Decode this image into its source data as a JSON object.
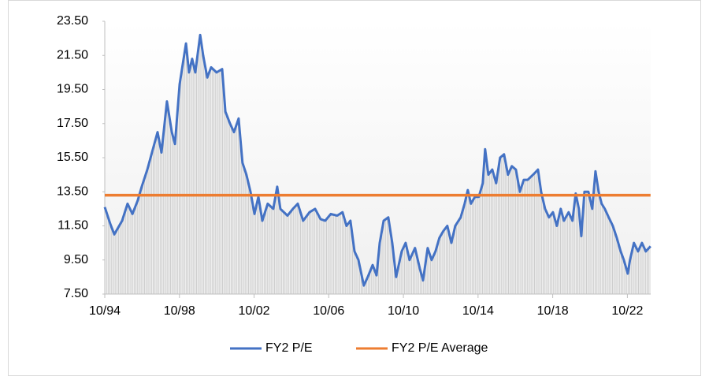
{
  "chart_data": {
    "type": "line",
    "x": [
      1994.75,
      1995.05,
      1995.26,
      1995.68,
      1995.97,
      1996.23,
      1996.52,
      1996.73,
      1997.03,
      1997.28,
      1997.58,
      1997.79,
      1998.08,
      1998.34,
      1998.51,
      1998.76,
      1999.1,
      1999.26,
      1999.43,
      1999.6,
      1999.86,
      2000.02,
      2000.24,
      2000.45,
      2000.74,
      2001.04,
      2001.21,
      2001.46,
      2001.67,
      2001.92,
      2002.13,
      2002.34,
      2002.56,
      2002.77,
      2002.98,
      2003.19,
      2003.48,
      2003.78,
      2003.99,
      2004.16,
      2004.54,
      2004.83,
      2005.09,
      2005.38,
      2005.72,
      2006.02,
      2006.31,
      2006.56,
      2006.86,
      2007.2,
      2007.49,
      2007.7,
      2007.91,
      2008.13,
      2008.34,
      2008.63,
      2008.84,
      2009.1,
      2009.31,
      2009.48,
      2009.69,
      2009.94,
      2010.15,
      2010.36,
      2010.66,
      2010.87,
      2011.08,
      2011.37,
      2011.63,
      2011.8,
      2012.05,
      2012.26,
      2012.47,
      2012.68,
      2012.89,
      2013.1,
      2013.32,
      2013.53,
      2013.82,
      2014.03,
      2014.2,
      2014.37,
      2014.58,
      2014.79,
      2015.0,
      2015.13,
      2015.3,
      2015.51,
      2015.72,
      2015.93,
      2016.14,
      2016.35,
      2016.56,
      2016.78,
      2016.99,
      2017.2,
      2017.41,
      2017.7,
      2017.96,
      2018.13,
      2018.34,
      2018.55,
      2018.76,
      2018.97,
      2019.18,
      2019.35,
      2019.6,
      2019.81,
      2019.98,
      2020.15,
      2020.28,
      2020.45,
      2020.66,
      2020.87,
      2021.04,
      2021.21,
      2021.37,
      2021.54,
      2021.75,
      2021.97,
      2022.18,
      2022.39,
      2022.56,
      2022.77,
      2022.89,
      2023.1,
      2023.32,
      2023.53,
      2023.74,
      2023.99
    ],
    "series": [
      {
        "name": "FY2 P/E",
        "color": "#4472c4",
        "fill": "#c8c8c8",
        "values": [
          12.6,
          11.6,
          11.0,
          11.8,
          12.8,
          12.2,
          13.0,
          13.8,
          14.8,
          15.8,
          17.0,
          15.8,
          18.8,
          17.0,
          16.3,
          19.8,
          22.2,
          20.5,
          21.3,
          20.5,
          22.7,
          21.5,
          20.2,
          20.8,
          20.5,
          20.7,
          18.2,
          17.5,
          17.0,
          17.8,
          15.2,
          14.5,
          13.5,
          12.2,
          13.2,
          11.8,
          12.8,
          12.5,
          13.8,
          12.5,
          12.1,
          12.5,
          12.8,
          11.8,
          12.3,
          12.5,
          11.9,
          11.8,
          12.2,
          12.1,
          12.3,
          11.5,
          11.8,
          10.0,
          9.5,
          8.0,
          8.5,
          9.2,
          8.6,
          10.5,
          11.8,
          12.0,
          10.5,
          8.5,
          10.0,
          10.5,
          9.5,
          10.2,
          9.0,
          8.3,
          10.2,
          9.5,
          10.0,
          10.8,
          11.2,
          11.5,
          10.5,
          11.5,
          12.0,
          12.8,
          13.6,
          12.8,
          13.2,
          13.2,
          14.0,
          16.0,
          14.5,
          14.8,
          14.0,
          15.5,
          15.7,
          14.5,
          15.0,
          14.8,
          13.5,
          14.2,
          14.2,
          14.5,
          14.8,
          13.5,
          12.5,
          12.0,
          12.3,
          11.5,
          12.5,
          11.8,
          12.3,
          11.8,
          13.4,
          12.5,
          10.9,
          13.5,
          13.5,
          12.5,
          14.7,
          13.5,
          12.8,
          12.5,
          12.0,
          11.5,
          10.8,
          10.0,
          9.5,
          8.7,
          9.5,
          10.5,
          10.0,
          10.5,
          10.0,
          10.3
        ]
      },
      {
        "name": "FY2 P/E Average",
        "color": "#ed7d31",
        "x": [
          1994.75,
          2023.99
        ],
        "values": [
          13.3,
          13.3
        ]
      }
    ],
    "xlim": [
      1994.75,
      2024.0
    ],
    "xticks": [
      {
        "value": 1994.75,
        "label": "10/94"
      },
      {
        "value": 1998.75,
        "label": "10/98"
      },
      {
        "value": 2002.75,
        "label": "10/02"
      },
      {
        "value": 2006.75,
        "label": "10/06"
      },
      {
        "value": 2010.75,
        "label": "10/10"
      },
      {
        "value": 2014.75,
        "label": "10/14"
      },
      {
        "value": 2018.75,
        "label": "10/18"
      },
      {
        "value": 2022.75,
        "label": "10/22"
      }
    ],
    "ylim": [
      7.5,
      23.5
    ],
    "yticks": [
      {
        "value": 7.5,
        "label": "7.50"
      },
      {
        "value": 9.5,
        "label": "9.50"
      },
      {
        "value": 11.5,
        "label": "11.50"
      },
      {
        "value": 13.5,
        "label": "13.50"
      },
      {
        "value": 15.5,
        "label": "15.50"
      },
      {
        "value": 17.5,
        "label": "17.50"
      },
      {
        "value": 19.5,
        "label": "19.50"
      },
      {
        "value": 21.5,
        "label": "21.50"
      },
      {
        "value": 23.5,
        "label": "23.50"
      }
    ],
    "legend": "bottom"
  }
}
